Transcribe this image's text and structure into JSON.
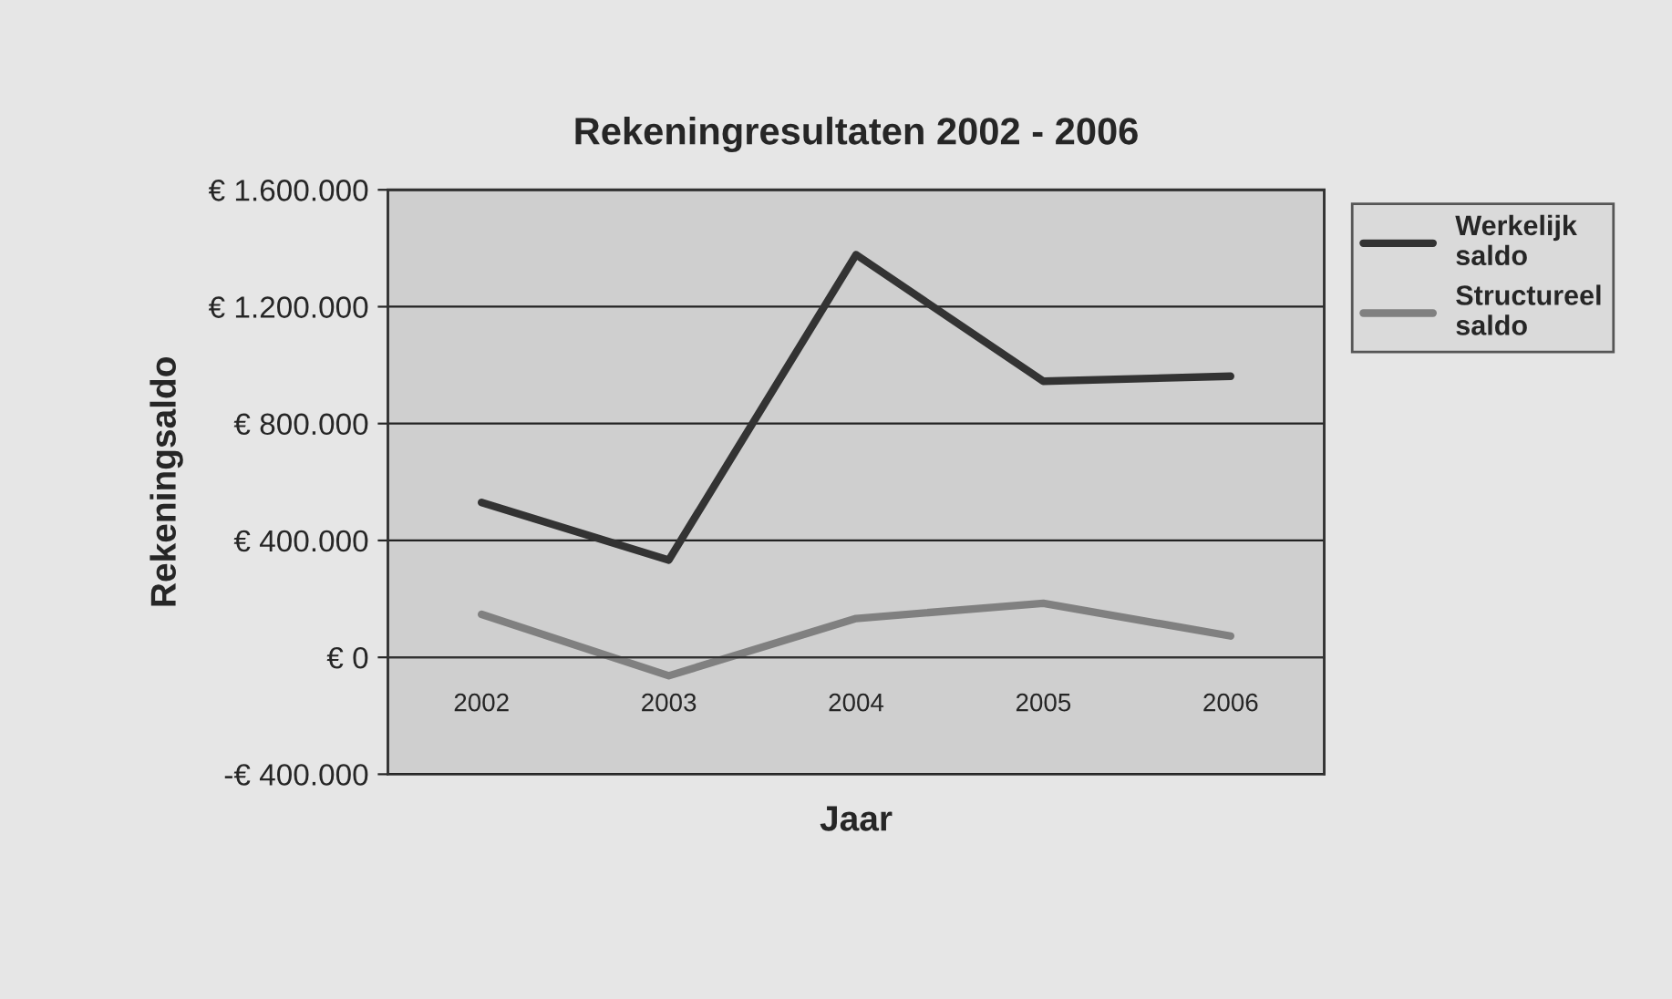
{
  "chart_data": {
    "type": "line",
    "title": "Rekeningresultaten 2002 - 2006",
    "xlabel": "Jaar",
    "ylabel": "Rekeningsaldo",
    "categories": [
      "2002",
      "2003",
      "2004",
      "2005",
      "2006"
    ],
    "series": [
      {
        "name": "Werkelijk saldo",
        "color": "#333333",
        "values": [
          530000,
          333000,
          1378000,
          945000,
          962000
        ]
      },
      {
        "name": "Structureel saldo",
        "color": "#808080",
        "values": [
          147000,
          -63000,
          133000,
          185000,
          73000
        ]
      }
    ],
    "ylim": [
      -400000,
      1600000
    ],
    "yticks": [
      {
        "value": -400000,
        "label": "-€ 400.000"
      },
      {
        "value": 0,
        "label": "€ 0"
      },
      {
        "value": 400000,
        "label": "€ 400.000"
      },
      {
        "value": 800000,
        "label": "€ 800.000"
      },
      {
        "value": 1200000,
        "label": "€ 1.200.000"
      },
      {
        "value": 1600000,
        "label": "€ 1.600.000"
      }
    ],
    "grid": "y",
    "legend": "top right",
    "marker": "none",
    "line_style": "solid"
  }
}
